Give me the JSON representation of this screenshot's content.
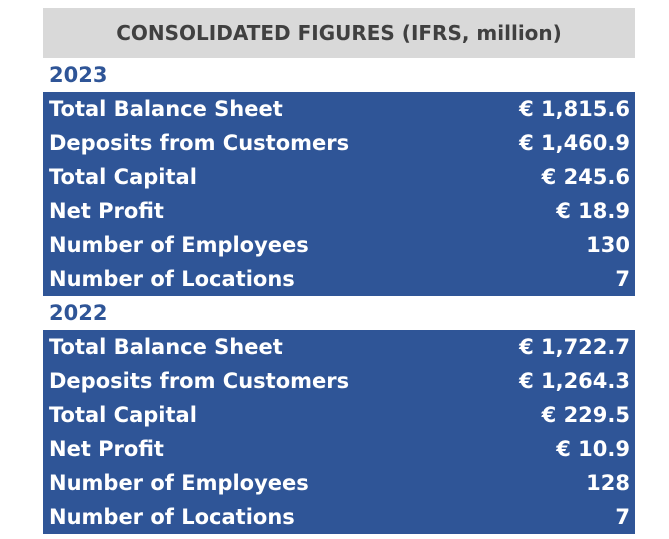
{
  "header": {
    "title": "CONSOLIDATED FIGURES (IFRS, million)"
  },
  "sections": [
    {
      "year": "2023",
      "rows": [
        {
          "label": "Total Balance Sheet",
          "value": "€ 1,815.6"
        },
        {
          "label": "Deposits from Customers",
          "value": "€ 1,460.9"
        },
        {
          "label": "Total Capital",
          "value": "€ 245.6"
        },
        {
          "label": "Net Profit",
          "value": "€ 18.9"
        },
        {
          "label": "Number of Employees",
          "value": "130"
        },
        {
          "label": "Number of Locations",
          "value": "7"
        }
      ]
    },
    {
      "year": "2022",
      "rows": [
        {
          "label": "Total Balance Sheet",
          "value": "€ 1,722.7"
        },
        {
          "label": "Deposits from Customers",
          "value": "€ 1,264.3"
        },
        {
          "label": "Total Capital",
          "value": "€ 229.5"
        },
        {
          "label": "Net Profit",
          "value": "€ 10.9"
        },
        {
          "label": "Number of Employees",
          "value": "128"
        },
        {
          "label": "Number of Locations",
          "value": "7"
        }
      ]
    }
  ],
  "colors": {
    "header_bg": "#d9d9d9",
    "header_text": "#404040",
    "block_bg": "#2f5597",
    "year_text": "#2f5597",
    "row_text": "#ffffff"
  }
}
